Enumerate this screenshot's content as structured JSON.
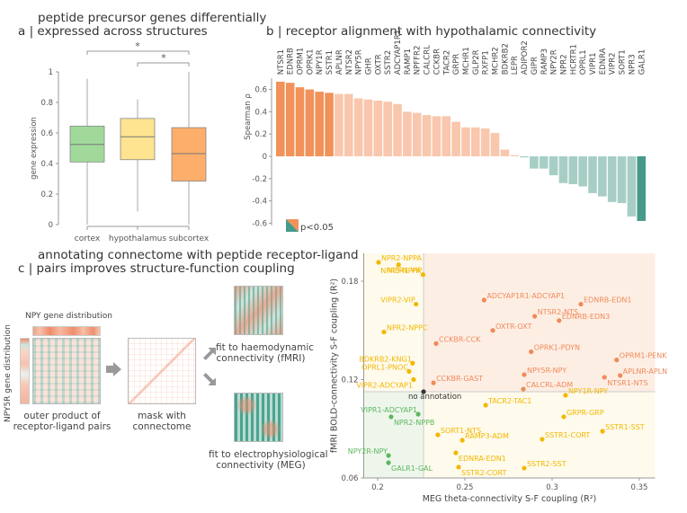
{
  "panel_a": {
    "title_line1": "peptide precursor genes differentially",
    "title_line2": "a | expressed across structures"
  },
  "panel_b": {
    "title": "b | receptor alignment with hypothalamic connectivity",
    "legend_label": "p<0.05"
  },
  "panel_c": {
    "title_line1": "annotating connectome with peptide receptor-ligand",
    "title_line2": "c | pairs improves structure-function coupling",
    "npy_label": "NPY gene distribution",
    "npy5r_label": "NPY5R gene distribution",
    "outer_product_caption": [
      "outer product of",
      "receptor-ligand pairs"
    ],
    "mask_caption": [
      "mask with",
      "connectome"
    ],
    "fmri_caption": [
      "fit to haemodynamic",
      "connectivity (fMRI)"
    ],
    "meg_caption": [
      "fit to electrophysiological",
      "connectivity (MEG)"
    ]
  },
  "colors": {
    "cortex": "#a1d99b",
    "hypothalamus": "#fee391",
    "subcortex": "#fdae6b",
    "positive_sig": "#f0925a",
    "positive": "#f8c7ad",
    "negative": "#a6cec5",
    "negative_sig": "#459a89",
    "orange_pts": "#ef8a5a",
    "yellow_pts": "#f2b800",
    "green_pts": "#5cb85c",
    "orange_region": "#fdeee4",
    "yellow_region": "#fefaec",
    "green_region": "#eef6ec"
  },
  "chart_data": [
    {
      "type": "box",
      "title": "peptide precursor genes differentially expressed across structures",
      "xlabel": "",
      "ylabel": "gene expression",
      "ylim": [
        0,
        1
      ],
      "yticks": [
        "0",
        "0.2",
        "0.4",
        "0.6",
        "0.8",
        "1"
      ],
      "categories": [
        "cortex",
        "hypothalamus",
        "subcortex"
      ],
      "boxes": [
        {
          "name": "cortex",
          "whisker_low": 0,
          "q1": 0.41,
          "median": 0.525,
          "q3": 0.645,
          "whisker_high": 0.955
        },
        {
          "name": "hypothalamus",
          "whisker_low": 0.085,
          "q1": 0.425,
          "median": 0.575,
          "q3": 0.695,
          "whisker_high": 0.82
        },
        {
          "name": "subcortex",
          "whisker_low": 0,
          "q1": 0.285,
          "median": 0.465,
          "q3": 0.635,
          "whisker_high": 1.0
        }
      ],
      "significance": [
        {
          "from": "cortex",
          "to": "subcortex",
          "label": "*"
        },
        {
          "from": "hypothalamus",
          "to": "subcortex",
          "label": "*"
        }
      ]
    },
    {
      "type": "bar",
      "title": "b | receptor alignment with hypothalamic connectivity",
      "xlabel": "",
      "ylabel": "Spearman ρ",
      "ylim": [
        -0.6,
        0.7
      ],
      "yticks": [
        "-0.6",
        "-0.4",
        "-0.2",
        "0",
        "0.2",
        "0.4",
        "0.6"
      ],
      "legend": "p<0.05 (bottom-left)",
      "categories": [
        "NTSR1",
        "EDNRB",
        "OPRM1",
        "OPRK1",
        "NPY1R",
        "SSTR1",
        "APLNR",
        "NTSR2",
        "NPY5R",
        "GHR",
        "OXTR",
        "SSTR2",
        "ADCYAP1R1",
        "RAMP1",
        "NPFFR2",
        "CALCRL",
        "CCKBR",
        "TACR2",
        "GRPR",
        "MCHR1",
        "GLP2R",
        "RXFP1",
        "MCHR2",
        "BDKRB2",
        "LEPR",
        "ADIPOR2",
        "GIPR",
        "RAMP3",
        "NPY2R",
        "NPR2",
        "HCRTR1",
        "OPRL1",
        "VIPR1",
        "EDNRA",
        "VIPR2",
        "SORT1",
        "NPR3",
        "GALR1"
      ],
      "values": [
        0.67,
        0.66,
        0.62,
        0.6,
        0.58,
        0.57,
        0.56,
        0.56,
        0.52,
        0.51,
        0.5,
        0.49,
        0.47,
        0.4,
        0.39,
        0.37,
        0.36,
        0.36,
        0.31,
        0.26,
        0.26,
        0.25,
        0.21,
        0.06,
        0.01,
        -0.01,
        -0.11,
        -0.11,
        -0.17,
        -0.24,
        -0.25,
        -0.27,
        -0.33,
        -0.36,
        -0.41,
        -0.42,
        -0.54,
        -0.58
      ],
      "significant": [
        true,
        true,
        true,
        true,
        true,
        true,
        false,
        false,
        false,
        false,
        false,
        false,
        false,
        false,
        false,
        false,
        false,
        false,
        false,
        false,
        false,
        false,
        false,
        false,
        false,
        false,
        false,
        false,
        false,
        false,
        false,
        false,
        false,
        false,
        false,
        false,
        false,
        true
      ]
    },
    {
      "type": "scatter",
      "title": "structure-function coupling",
      "xlabel": "MEG theta-connectivity S-F coupling (R²)",
      "ylabel": "fMRI BOLD-connectivity S-F coupling (R²)",
      "xlim": [
        0.192,
        0.359
      ],
      "ylim": [
        0.06,
        0.197
      ],
      "xticks": [
        "0.2",
        "0.25",
        "0.3",
        "0.35"
      ],
      "yticks": [
        "0.06",
        "0.12",
        "0.18"
      ],
      "reference": {
        "label": "no annotation",
        "x": 0.2263,
        "y": 0.1126
      },
      "points": [
        {
          "label": "NPR2-NPPA",
          "x": 0.2005,
          "y": 0.1915,
          "group": "yellow"
        },
        {
          "label": "NPR3-NPPA",
          "x": 0.212,
          "y": 0.19,
          "group": "yellow"
        },
        {
          "label": "VIPR1-VIP",
          "x": 0.226,
          "y": 0.184,
          "group": "yellow"
        },
        {
          "label": "VIPR2-VIP",
          "x": 0.222,
          "y": 0.166,
          "group": "yellow"
        },
        {
          "label": "NPR2-NPPC",
          "x": 0.2036,
          "y": 0.149,
          "group": "yellow"
        },
        {
          "label": "BDKRB2-KNG1",
          "x": 0.22,
          "y": 0.13,
          "group": "yellow"
        },
        {
          "label": "OPRL1-PNOC",
          "x": 0.218,
          "y": 0.125,
          "group": "yellow"
        },
        {
          "label": "VIPR2-ADCYAP1",
          "x": 0.2206,
          "y": 0.12,
          "group": "yellow"
        },
        {
          "label": "CCKBR-GAST",
          "x": 0.232,
          "y": 0.118,
          "group": "orange"
        },
        {
          "label": "CCKBR-CCK",
          "x": 0.2335,
          "y": 0.142,
          "group": "orange"
        },
        {
          "label": "ADCYAP1R1-ADCYAP1",
          "x": 0.261,
          "y": 0.1685,
          "group": "orange"
        },
        {
          "label": "OXTR-OXT",
          "x": 0.266,
          "y": 0.15,
          "group": "orange"
        },
        {
          "label": "NTSR2-NTS",
          "x": 0.29,
          "y": 0.1586,
          "group": "orange"
        },
        {
          "label": "EDNRB-EDN1",
          "x": 0.3165,
          "y": 0.166,
          "group": "orange"
        },
        {
          "label": "EDNRB-EDN3",
          "x": 0.304,
          "y": 0.156,
          "group": "orange"
        },
        {
          "label": "OPRK1-PDYN",
          "x": 0.288,
          "y": 0.137,
          "group": "orange"
        },
        {
          "label": "OPRM1-PENK",
          "x": 0.337,
          "y": 0.132,
          "group": "orange"
        },
        {
          "label": "APLNR-APLN",
          "x": 0.339,
          "y": 0.1225,
          "group": "orange"
        },
        {
          "label": "NTSR1-NTS",
          "x": 0.33,
          "y": 0.1214,
          "group": "orange"
        },
        {
          "label": "NPY5R-NPY",
          "x": 0.284,
          "y": 0.123,
          "group": "orange"
        },
        {
          "label": "CALCRL-ADM",
          "x": 0.2835,
          "y": 0.1142,
          "group": "orange"
        },
        {
          "label": "NPY1R-NPY",
          "x": 0.3077,
          "y": 0.1104,
          "group": "yellow"
        },
        {
          "label": "TACR2-TAC1",
          "x": 0.2619,
          "y": 0.1044,
          "group": "yellow"
        },
        {
          "label": "GRPR-GRP",
          "x": 0.3067,
          "y": 0.0973,
          "group": "yellow"
        },
        {
          "label": "SSTR1-SST",
          "x": 0.3289,
          "y": 0.0885,
          "group": "yellow"
        },
        {
          "label": "SSTR1-CORT",
          "x": 0.2943,
          "y": 0.0836,
          "group": "yellow"
        },
        {
          "label": "RAMP3-ADM",
          "x": 0.2485,
          "y": 0.083,
          "group": "yellow"
        },
        {
          "label": "SORT1-NTS",
          "x": 0.2345,
          "y": 0.0863,
          "group": "yellow"
        },
        {
          "label": "EDNRA-EDN1",
          "x": 0.2448,
          "y": 0.0753,
          "group": "yellow"
        },
        {
          "label": "SSTR2-CORT",
          "x": 0.2464,
          "y": 0.0666,
          "group": "yellow"
        },
        {
          "label": "SSTR2-SST",
          "x": 0.284,
          "y": 0.066,
          "group": "yellow"
        },
        {
          "label": "VIPR1-ADCYAP1",
          "x": 0.2232,
          "y": 0.0989,
          "group": "green"
        },
        {
          "label": "NPR2-NPPB",
          "x": 0.2077,
          "y": 0.0973,
          "group": "green"
        },
        {
          "label": "NPY2R-NPY",
          "x": 0.2062,
          "y": 0.0737,
          "group": "green"
        },
        {
          "label": "GALR1-GAL",
          "x": 0.2062,
          "y": 0.0693,
          "group": "green"
        }
      ]
    }
  ]
}
